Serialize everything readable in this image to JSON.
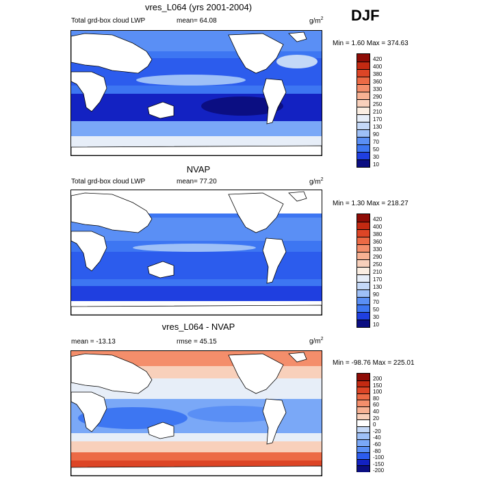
{
  "season": "DJF",
  "colors": {
    "abs": [
      "#0b0e82",
      "#1322c2",
      "#1f3fe0",
      "#2c5ced",
      "#3d76f2",
      "#5a8ff5",
      "#7aa8f7",
      "#9ec0f7",
      "#c4d8f7",
      "#e7eef8",
      "#fbeee2",
      "#f8d0bb",
      "#f7b193",
      "#f48e6b",
      "#ec6a45",
      "#dd4526",
      "#c42a12",
      "#8e0c06"
    ],
    "diff": [
      "#0b0e82",
      "#1322c2",
      "#1f3fe0",
      "#2c5ced",
      "#3d76f2",
      "#5a8ff5",
      "#7aa8f7",
      "#9ec0f7",
      "#c4d8f7",
      "#e7eef8",
      "#fbeee2",
      "#f8d0bb",
      "#f7b193",
      "#f48e6b",
      "#ec6a45",
      "#dd4526",
      "#c42a12",
      "#8e0c06"
    ]
  },
  "chart_data": [
    {
      "type": "heatmap",
      "title": "vres_L064 (yrs 2001-2004)",
      "left_label": "Total grd-box cloud LWP",
      "center_label": "mean=  64.08",
      "unit_base": "g/m",
      "unit_exp": "2",
      "minmax": "Min =   1.60 Max = 374.63",
      "levels": [
        "420",
        "400",
        "380",
        "360",
        "330",
        "290",
        "250",
        "210",
        "170",
        "130",
        "90",
        "70",
        "50",
        "30",
        "10"
      ]
    },
    {
      "type": "heatmap",
      "title": "NVAP",
      "left_label": "Total grd-box cloud LWP",
      "center_label": "mean=  77.20",
      "unit_base": "g/m",
      "unit_exp": "2",
      "minmax": "Min =   1.30 Max = 218.27",
      "levels": [
        "420",
        "400",
        "380",
        "360",
        "330",
        "290",
        "250",
        "210",
        "170",
        "130",
        "90",
        "70",
        "50",
        "30",
        "10"
      ]
    },
    {
      "type": "heatmap",
      "title": "vres_L064 - NVAP",
      "left_label": "mean = -13.13",
      "center_label": "rmse =  45.15",
      "unit_base": "g/m",
      "unit_exp": "2",
      "minmax": "Min = -98.76 Max = 225.01",
      "levels": [
        "200",
        "150",
        "100",
        "80",
        "60",
        "40",
        "20",
        "0",
        "-20",
        "-40",
        "-60",
        "-80",
        "-100",
        "-150",
        "-200"
      ]
    }
  ]
}
